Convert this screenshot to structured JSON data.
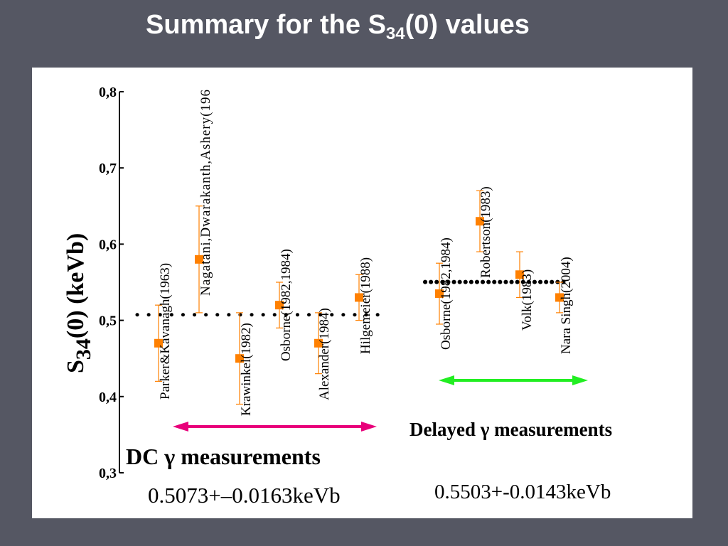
{
  "slide": {
    "title_main": "Summary for the S",
    "title_sub": "34",
    "title_tail": "(0) values"
  },
  "chart_data": {
    "type": "scatter",
    "ylabel_main": "S",
    "ylabel_sub": "34",
    "ylabel_tail": "(0) (keVb)",
    "ylim": [
      0.3,
      0.8
    ],
    "yticks": [
      "0,3",
      "0,4",
      "0,5",
      "0,6",
      "0,7",
      "0,8"
    ],
    "ytick_values": [
      0.3,
      0.4,
      0.5,
      0.6,
      0.7,
      0.8
    ],
    "grid": false,
    "point_color": "#ff8000",
    "points": [
      {
        "label": "Parker&Kavanagh(1963)",
        "value": 0.47,
        "err_low": 0.42,
        "err_high": 0.52,
        "group": "dc"
      },
      {
        "label": "Nagatani,Dwarakanth,Ashery(196",
        "value": 0.58,
        "err_low": 0.51,
        "err_high": 0.65,
        "group": "dc"
      },
      {
        "label": "Krawinkel(1982)",
        "value": 0.45,
        "err_low": 0.39,
        "err_high": 0.51,
        "group": "dc"
      },
      {
        "label": "Osborne(1982,1984)",
        "value": 0.52,
        "err_low": 0.49,
        "err_high": 0.55,
        "group": "dc"
      },
      {
        "label": "Alexander(1984)",
        "value": 0.47,
        "err_low": 0.43,
        "err_high": 0.51,
        "group": "dc"
      },
      {
        "label": "Hilgemeier(1988)",
        "value": 0.53,
        "err_low": 0.5,
        "err_high": 0.56,
        "group": "dc"
      },
      {
        "label": "Osborne(1982,1984)",
        "value": 0.535,
        "err_low": 0.495,
        "err_high": 0.575,
        "group": "delayed"
      },
      {
        "label": "Robertson(1983)",
        "value": 0.63,
        "err_low": 0.59,
        "err_high": 0.67,
        "group": "delayed"
      },
      {
        "label": "Volk(1983)",
        "value": 0.56,
        "err_low": 0.53,
        "err_high": 0.59,
        "group": "delayed"
      },
      {
        "label": "Nara Singh(2004)",
        "value": 0.53,
        "err_low": 0.51,
        "err_high": 0.55,
        "group": "delayed"
      }
    ],
    "averages": [
      {
        "group": "dc",
        "value": 0.5073
      },
      {
        "group": "delayed",
        "value": 0.5503
      }
    ],
    "dc_label": "DC γ measurements",
    "dc_result": "0.5073+–0.0163keVb",
    "delayed_label": "Delayed γ measurements",
    "delayed_result": "0.5503+-0.0143keVb",
    "dc_arrow_color": "#e8007a",
    "delayed_arrow_color": "#22ee22"
  }
}
